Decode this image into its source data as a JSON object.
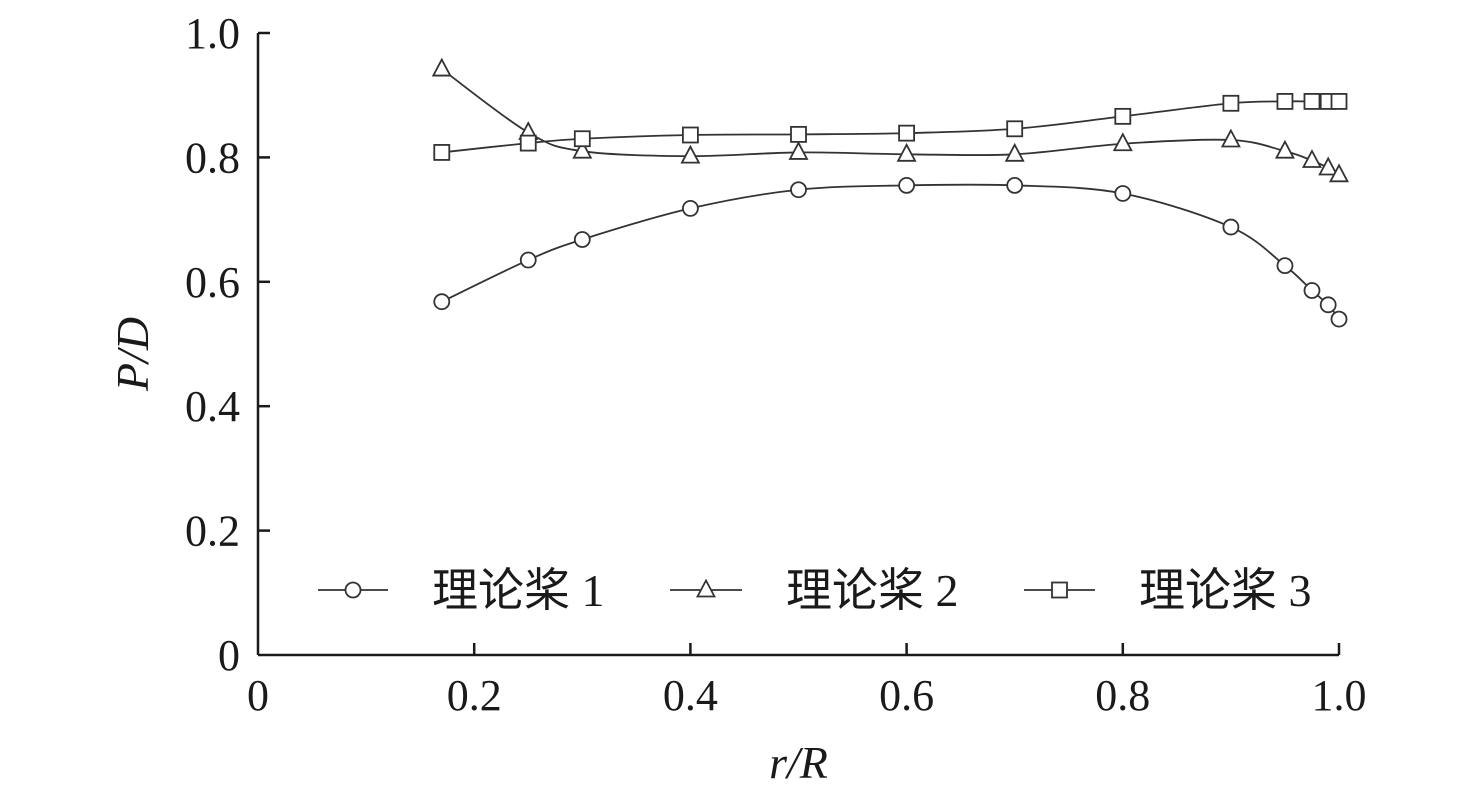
{
  "chart_data": {
    "type": "line",
    "xlabel": "r/R",
    "ylabel": "P/D",
    "xlim": [
      0,
      1.0
    ],
    "ylim": [
      0,
      1.0
    ],
    "x_ticks": [
      "0",
      "0.2",
      "0.4",
      "0.6",
      "0.8",
      "1.0"
    ],
    "y_ticks": [
      "0",
      "0.2",
      "0.4",
      "0.6",
      "0.8",
      "1.0"
    ],
    "grid": false,
    "legend_position": "bottom-center",
    "series": [
      {
        "name": "理论桨 1",
        "marker": "circle",
        "x": [
          0.17,
          0.25,
          0.3,
          0.4,
          0.5,
          0.6,
          0.7,
          0.8,
          0.9,
          0.95,
          0.975,
          0.99,
          1.0
        ],
        "y": [
          0.568,
          0.635,
          0.668,
          0.718,
          0.748,
          0.755,
          0.755,
          0.742,
          0.688,
          0.626,
          0.586,
          0.563,
          0.54
        ]
      },
      {
        "name": "理论桨 2",
        "marker": "triangle",
        "x": [
          0.17,
          0.25,
          0.3,
          0.4,
          0.5,
          0.6,
          0.7,
          0.8,
          0.9,
          0.95,
          0.975,
          0.99,
          1.0
        ],
        "y": [
          0.942,
          0.84,
          0.81,
          0.802,
          0.808,
          0.805,
          0.805,
          0.822,
          0.828,
          0.81,
          0.795,
          0.783,
          0.772
        ]
      },
      {
        "name": "理论桨 3",
        "marker": "square",
        "x": [
          0.17,
          0.25,
          0.3,
          0.4,
          0.5,
          0.6,
          0.7,
          0.8,
          0.9,
          0.95,
          0.975,
          0.99,
          1.0
        ],
        "y": [
          0.808,
          0.823,
          0.83,
          0.836,
          0.837,
          0.839,
          0.846,
          0.866,
          0.887,
          0.89,
          0.89,
          0.89,
          0.89
        ]
      }
    ]
  }
}
